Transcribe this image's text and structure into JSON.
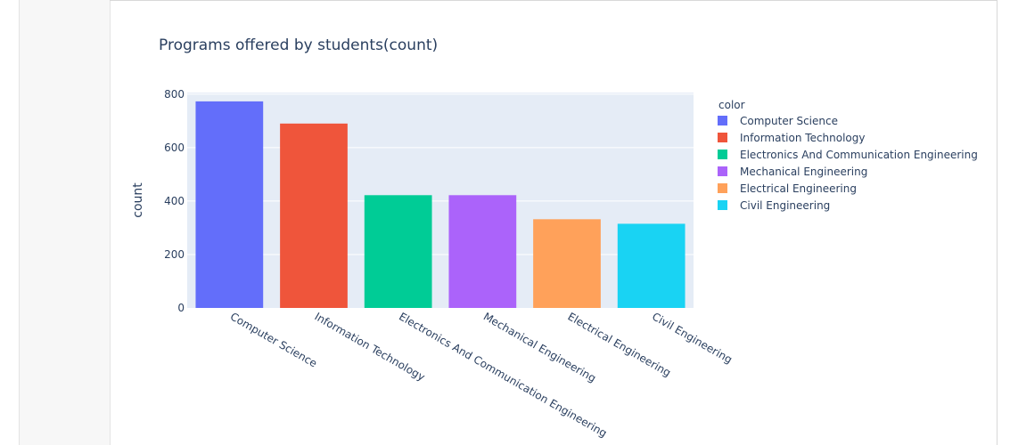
{
  "chart_data": {
    "type": "bar",
    "title": "Programs offered by students(count)",
    "xlabel": "",
    "ylabel": "count",
    "ylim": [
      0,
      800
    ],
    "yticks": [
      0,
      200,
      400,
      600,
      800
    ],
    "categories": [
      "Computer Science",
      "Information Technology",
      "Electronics And Communication Engineering",
      "Mechanical Engineering",
      "Electrical Engineering",
      "Civil Engineering"
    ],
    "values": [
      773,
      690,
      422,
      422,
      332,
      315
    ],
    "colors": [
      "#636efa",
      "#ef553b",
      "#00cc96",
      "#ab63fa",
      "#ffa15a",
      "#19d3f3"
    ],
    "legend": {
      "title": "color",
      "placement": "right",
      "items": [
        "Computer Science",
        "Information Technology",
        "Electronics And Communication Engineering",
        "Mechanical Engineering",
        "Electrical Engineering",
        "Civil Engineering"
      ]
    },
    "grid": true,
    "plot_background": "#e5ecf6"
  }
}
